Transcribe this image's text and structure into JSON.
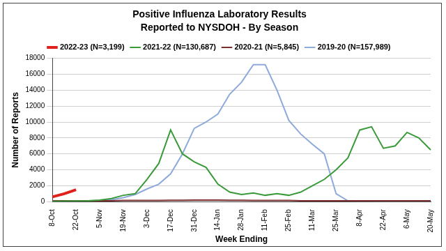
{
  "chart_data": {
    "type": "line",
    "title": "Positive Influenza Laboratory Results",
    "subtitle": "Reported to NYSDOH - By Season",
    "x_label": "Week Ending",
    "y_label": "Number of Reports",
    "categories": [
      "8-Oct",
      null,
      "22-Oct",
      null,
      "5-Nov",
      null,
      "19-Nov",
      null,
      "3-Dec",
      null,
      "17-Dec",
      null,
      "31-Dec",
      null,
      "14-Jan",
      null,
      "28-Jan",
      null,
      "11-Feb",
      null,
      "25-Feb",
      null,
      "11-Mar",
      null,
      "25-Mar",
      null,
      "8-Apr",
      null,
      "22-Apr",
      null,
      "6-May",
      null,
      "20-May"
    ],
    "series": [
      {
        "name": "2022-23 (N=3,199)",
        "color": "#e0201b",
        "values": [
          600,
          1000,
          1500,
          null,
          null,
          null,
          null,
          null,
          null,
          null,
          null,
          null,
          null,
          null,
          null,
          null,
          null,
          null,
          null,
          null,
          null,
          null,
          null,
          null,
          null,
          null,
          null,
          null,
          null,
          null,
          null,
          null,
          null
        ]
      },
      {
        "name": "2021-22 (N=130,687)",
        "color": "#3a9a3a",
        "values": [
          50,
          60,
          80,
          120,
          200,
          400,
          800,
          1000,
          2800,
          4800,
          9000,
          6000,
          5000,
          4300,
          2200,
          1200,
          900,
          1100,
          800,
          1000,
          800,
          1200,
          2000,
          2800,
          4000,
          5500,
          9000,
          9400,
          6700,
          7000,
          8700,
          8000,
          6500
        ]
      },
      {
        "name": "2020-21 (N=5,845)",
        "color": "#7b2c2c",
        "values": [
          100,
          100,
          100,
          100,
          120,
          120,
          150,
          150,
          150,
          150,
          180,
          180,
          200,
          200,
          200,
          180,
          180,
          150,
          150,
          150,
          150,
          120,
          120,
          120,
          100,
          100,
          100,
          100,
          100,
          100,
          100,
          100,
          100
        ]
      },
      {
        "name": "2019-20 (N=157,989)",
        "color": "#8eaadb",
        "values": [
          50,
          80,
          100,
          120,
          150,
          250,
          500,
          900,
          1600,
          2200,
          3500,
          6000,
          9200,
          10000,
          11000,
          13500,
          15000,
          17200,
          17200,
          14000,
          10200,
          8500,
          7200,
          6000,
          1000,
          100,
          80,
          60,
          50,
          50,
          50,
          50,
          50
        ]
      }
    ],
    "ylim": [
      0,
      18000
    ],
    "yticks": [
      0,
      2000,
      4000,
      6000,
      8000,
      10000,
      12000,
      14000,
      16000,
      18000
    ],
    "grid": true,
    "legend": "top"
  }
}
